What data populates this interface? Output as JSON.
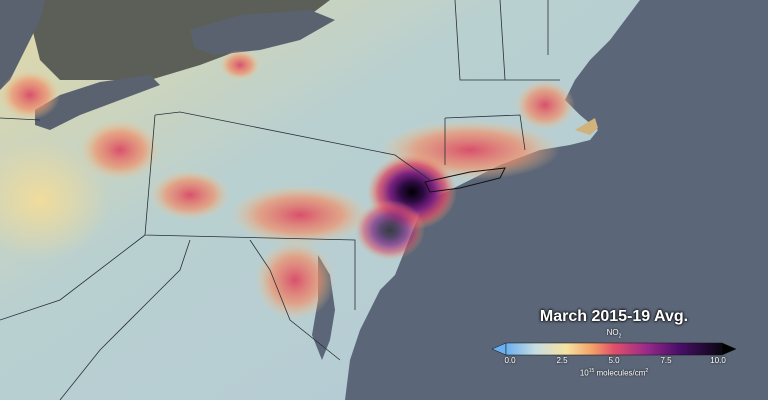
{
  "map": {
    "title": "March 2015-19 Avg.",
    "quantity": "NO",
    "quantity_subscript": "2",
    "units_base": "10",
    "units_exponent": "15",
    "units_text": " molecules/cm",
    "units_area_exponent": "2",
    "colorbar": {
      "ticks": [
        "0.0",
        "2.5",
        "5.0",
        "7.5",
        "10.0"
      ],
      "range": [
        0,
        10
      ],
      "colors": [
        "#6ab0f0",
        "#c8dde0",
        "#f5e2a0",
        "#f4a068",
        "#e0506a",
        "#9a2a8a",
        "#4a0f6a",
        "#0a0612"
      ]
    },
    "colors": {
      "ocean": "#5b6678",
      "lakes": "#5a6270",
      "canada_land": "#5c5f58"
    }
  }
}
